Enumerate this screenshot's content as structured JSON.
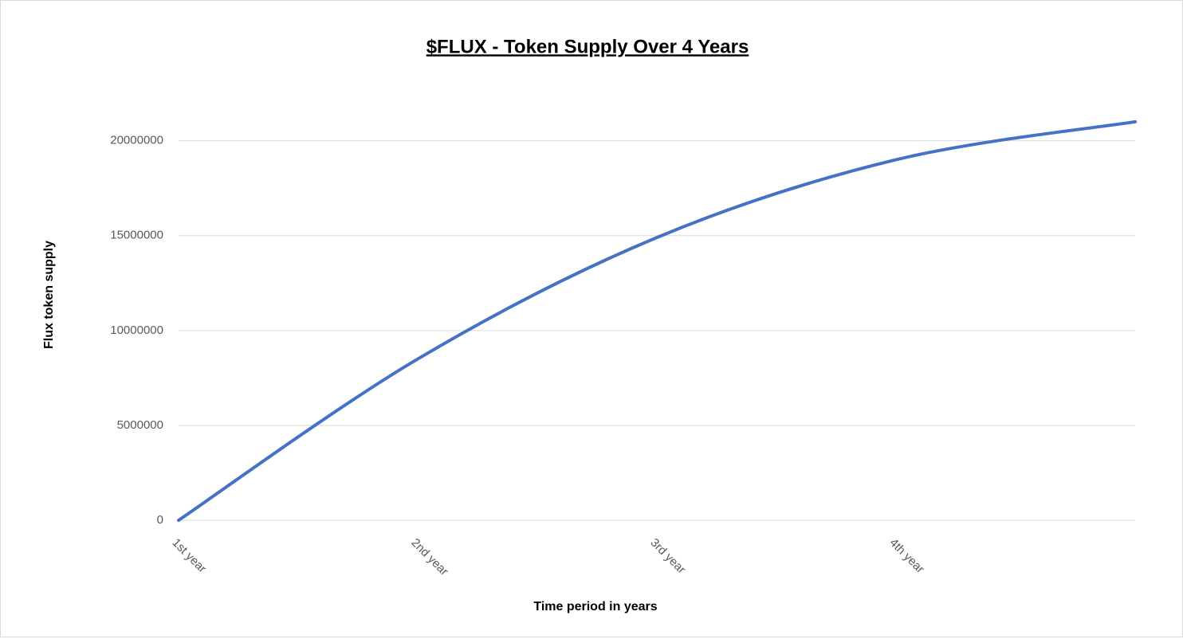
{
  "chart_data": {
    "type": "line",
    "title": "$FLUX - Token Supply Over 4 Years",
    "x_label": "Time period in years",
    "y_label": "Flux token supply",
    "categories": [
      "1st year",
      "2nd year",
      "3rd year",
      "4th year",
      null
    ],
    "series": [
      {
        "name": "Flux token supply",
        "color": "#4472c4",
        "values": [
          0,
          8500000,
          14900000,
          19000000,
          21000000
        ]
      }
    ],
    "ylim": [
      0,
      22000000
    ],
    "yticks": [
      0,
      5000000,
      10000000,
      15000000,
      20000000
    ],
    "grid": true
  }
}
